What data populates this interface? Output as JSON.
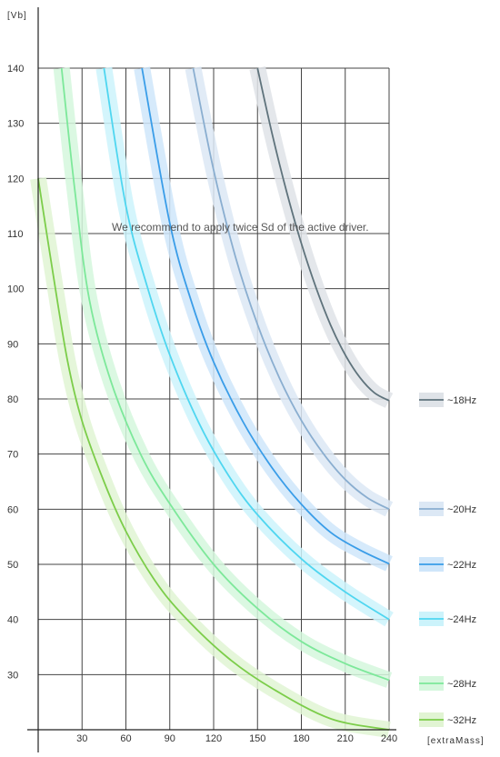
{
  "chart_data": {
    "type": "line",
    "xlabel": "[extraMass]",
    "ylabel": "[Vb]",
    "annotation": "We recommend to apply twice Sd of the active driver.",
    "xlim": [
      0,
      240
    ],
    "ylim": [
      20,
      140
    ],
    "xticks": [
      "30",
      "60",
      "90",
      "120",
      "150",
      "180",
      "210",
      "240"
    ],
    "yticks": [
      "30",
      "40",
      "50",
      "60",
      "70",
      "80",
      "90",
      "100",
      "110",
      "120",
      "130",
      "140"
    ],
    "grid": true,
    "legend_position": "right",
    "series": [
      {
        "name": "~18Hz",
        "color": "#5f737c",
        "band": "#dfe3e8",
        "x": [
          150,
          160,
          170,
          180,
          190,
          200,
          210,
          220,
          230,
          240
        ],
        "y": [
          140,
          128.1,
          117.5,
          108.2,
          100.2,
          93.4,
          88.0,
          83.9,
          81.1,
          79.7
        ]
      },
      {
        "name": "~20Hz",
        "color": "#8aaed0",
        "band": "#dce8f5",
        "x": [
          106,
          120,
          135,
          150,
          165,
          180,
          195,
          210,
          225,
          240
        ],
        "y": [
          140,
          121.5,
          105.7,
          93.5,
          83.8,
          76.1,
          70.1,
          65.4,
          62.1,
          60.0
        ]
      },
      {
        "name": "~22Hz",
        "color": "#3a9de8",
        "band": "#cfe6fa",
        "x": [
          71,
          90,
          105,
          120,
          140,
          160,
          180,
          200,
          220,
          240
        ],
        "y": [
          140,
          111.9,
          97.5,
          86.7,
          75.9,
          67.5,
          60.9,
          55.8,
          52.6,
          50.1
        ]
      },
      {
        "name": "~24Hz",
        "color": "#4fd6f0",
        "band": "#ccf3fb",
        "x": [
          45,
          60,
          75,
          90,
          110,
          130,
          150,
          180,
          210,
          240
        ],
        "y": [
          140,
          115.0,
          100.0,
          88.0,
          75.6,
          66.2,
          59.0,
          51.0,
          45.0,
          40.0
        ]
      },
      {
        "name": "~28Hz",
        "color": "#7de89a",
        "band": "#d5f7dd",
        "x": [
          16,
          25,
          35,
          50,
          70,
          90,
          120,
          150,
          180,
          210,
          240
        ],
        "y": [
          140,
          118.0,
          98.0,
          83.0,
          70.0,
          61.0,
          50.0,
          42.0,
          36.0,
          32.0,
          29.0
        ]
      },
      {
        "name": "~32Hz",
        "color": "#7ccd4a",
        "band": "#e1f4d3",
        "x": [
          0,
          10,
          20,
          30,
          45,
          60,
          80,
          100,
          130,
          160,
          200,
          240
        ],
        "y": [
          120,
          103.0,
          87.0,
          76.0,
          65.0,
          56.0,
          47.0,
          40.5,
          33.0,
          27.5,
          22.0,
          20.0
        ]
      }
    ]
  }
}
